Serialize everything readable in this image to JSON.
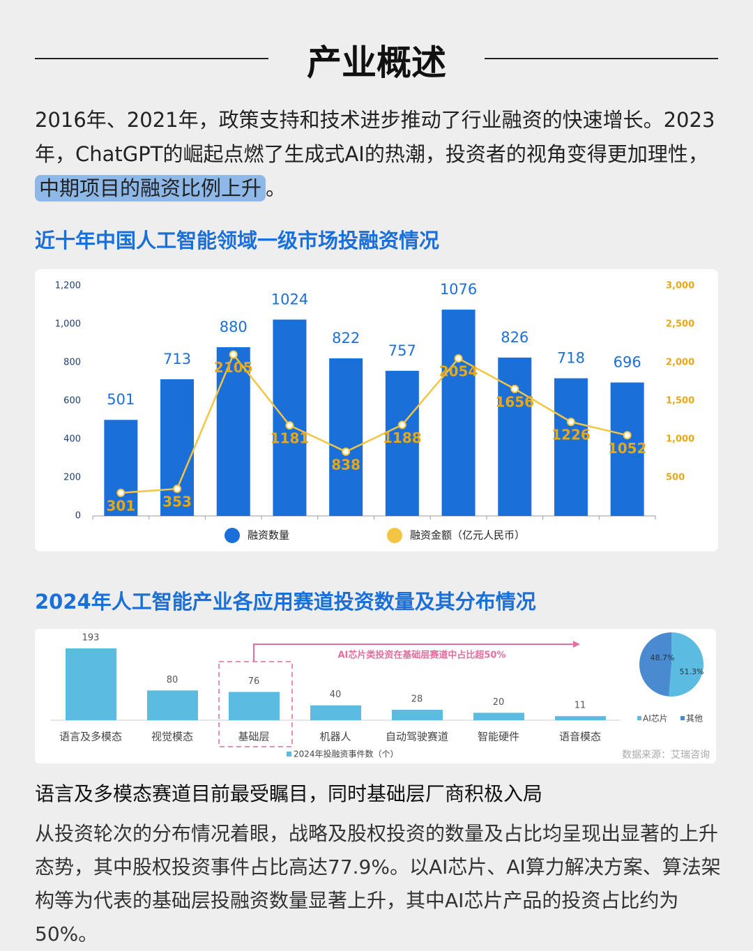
{
  "header": {
    "title": "产业概述"
  },
  "intro": {
    "text": "2016年、2021年，政策支持和技术进步推动了行业融资的快速增长。2023年，ChatGPT的崛起点燃了生成式AI的热潮，投资者的视角变得更加理性，",
    "highlight": "中期项目的融资比例上升",
    "end": "。"
  },
  "chart_data": [
    {
      "type": "bar",
      "title": "近十年中国人工智能领域一级市场投融资情况",
      "categories": [
        null,
        null,
        null,
        null,
        null,
        null,
        null,
        null,
        null,
        null
      ],
      "series": [
        {
          "name": "融资数量",
          "type": "bar",
          "color": "#1a6fd8",
          "values": [
            501,
            713,
            880,
            1024,
            822,
            757,
            1076,
            826,
            718,
            696
          ]
        },
        {
          "name": "融资金额（亿元人民币）",
          "type": "line",
          "axis": "y2",
          "color": "#f4c542",
          "label_color": "#e6a817",
          "values": [
            301,
            353,
            2105,
            1181,
            838,
            1188,
            2054,
            1656,
            1226,
            1052
          ]
        }
      ],
      "ylim": [
        0,
        1200
      ],
      "yticks": [
        0,
        200,
        400,
        600,
        800,
        {
          "value": 1000,
          "label": "1,000"
        },
        {
          "value": 1200,
          "label": "1,200"
        }
      ],
      "y2lim": [
        0,
        3000
      ],
      "y2ticks": [
        500,
        {
          "value": 1000,
          "label": "1,000"
        },
        {
          "value": 1500,
          "label": "1,500"
        },
        {
          "value": 2000,
          "label": "2,000"
        },
        {
          "value": 2500,
          "label": "2,500"
        },
        {
          "value": 3000,
          "label": "3,000"
        }
      ],
      "grid": false,
      "legend": "bottom"
    },
    {
      "type": "bar",
      "title": "2024年人工智能产业各应用赛道投资数量及其分布情况",
      "categories": [
        "语言及多模态",
        "视觉模态",
        "基础层",
        "机器人",
        "自动驾驶赛道",
        "智能硬件",
        "语音模态"
      ],
      "series": [
        {
          "name": "2024年投融资事件数（个）",
          "color": "#5bbbe0",
          "values": [
            193,
            80,
            76,
            40,
            28,
            20,
            11
          ]
        }
      ],
      "annotation": "AI芯片类投资在基础层赛道中占比超50%",
      "source": "数据来源：艾瑞咨询",
      "legend": "bottom"
    },
    {
      "type": "pie",
      "categories": [
        "AI芯片",
        "其他"
      ],
      "values": [
        51.3,
        48.7
      ],
      "value_labels": [
        "51.3%",
        "48.7%"
      ],
      "colors": [
        "#5bbbe0",
        "#4a8ad0"
      ],
      "legend": "bottom"
    }
  ],
  "section": {
    "heading": "语言及多模态赛道目前最受瞩目，同时基础层厂商积极入局",
    "body": "从投资轮次的分布情况着眼，战略及股权投资的数量及占比均呈现出显著的上升态势，其中股权投资事件占比高达77.9%。以AI芯片、AI算力解决方案、算法架构等为代表的基础层投融资数量显著上升，其中AI芯片产品的投资占比约为50%。"
  }
}
